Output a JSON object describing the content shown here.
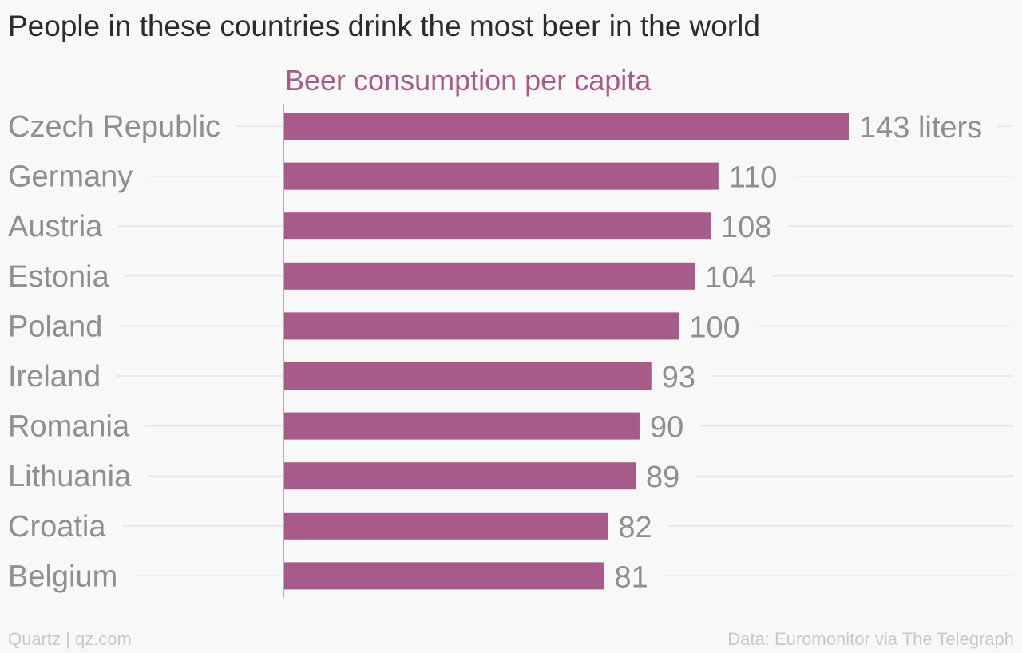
{
  "chart_data": {
    "type": "bar",
    "orientation": "horizontal",
    "title": "People in these countries drink the most beer in the world",
    "subtitle": "Beer consumption per capita",
    "categories": [
      "Czech Republic",
      "Germany",
      "Austria",
      "Estonia",
      "Poland",
      "Ireland",
      "Romania",
      "Lithuania",
      "Croatia",
      "Belgium"
    ],
    "values": [
      143,
      110,
      108,
      104,
      100,
      93,
      90,
      89,
      82,
      81
    ],
    "value_labels": [
      "143 liters",
      "110",
      "108",
      "104",
      "100",
      "93",
      "90",
      "89",
      "82",
      "81"
    ],
    "unit": "liters",
    "xlim": [
      0,
      143
    ],
    "grid": true,
    "bar_color": "#a85a8a",
    "source": "Data: Euromonitor via The Telegraph",
    "credit": "Quartz | qz.com"
  }
}
